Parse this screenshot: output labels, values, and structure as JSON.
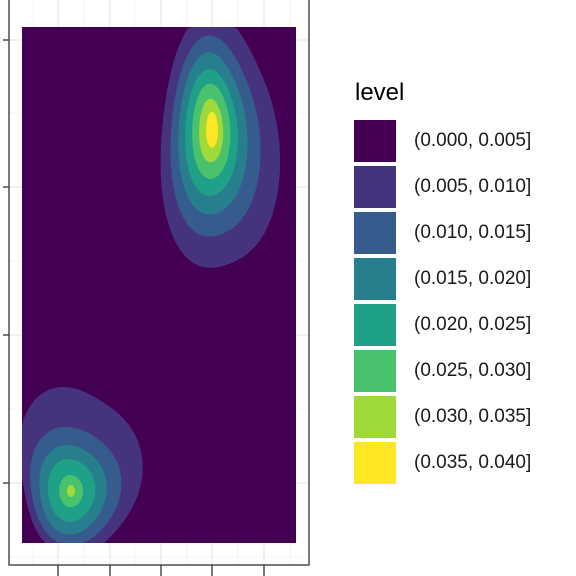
{
  "chart_data": {
    "type": "heatmap",
    "subtype": "filled-density-contour",
    "title": "",
    "xlabel": "",
    "ylabel": "",
    "grid": true,
    "theme": "ggplot2 bw",
    "legend_position": "right",
    "x_tick_labels": [],
    "y_tick_labels": [],
    "legend": {
      "title": "level",
      "levels": [
        {
          "label": "(0.000, 0.005]",
          "color": "#440154"
        },
        {
          "label": "(0.005, 0.010]",
          "color": "#46337E"
        },
        {
          "label": "(0.010, 0.015]",
          "color": "#365C8D"
        },
        {
          "label": "(0.015, 0.020]",
          "color": "#277F8E"
        },
        {
          "label": "(0.020, 0.025]",
          "color": "#1FA187"
        },
        {
          "label": "(0.025, 0.030]",
          "color": "#4AC16D"
        },
        {
          "label": "(0.030, 0.035]",
          "color": "#9FDA3A"
        },
        {
          "label": "(0.035, 0.040]",
          "color": "#FDE725"
        }
      ]
    },
    "density_peaks": [
      {
        "name": "upper-right cluster",
        "peak_level": "(0.035, 0.040]"
      },
      {
        "name": "lower-left cluster",
        "peak_level": "(0.025, 0.030]"
      }
    ]
  }
}
